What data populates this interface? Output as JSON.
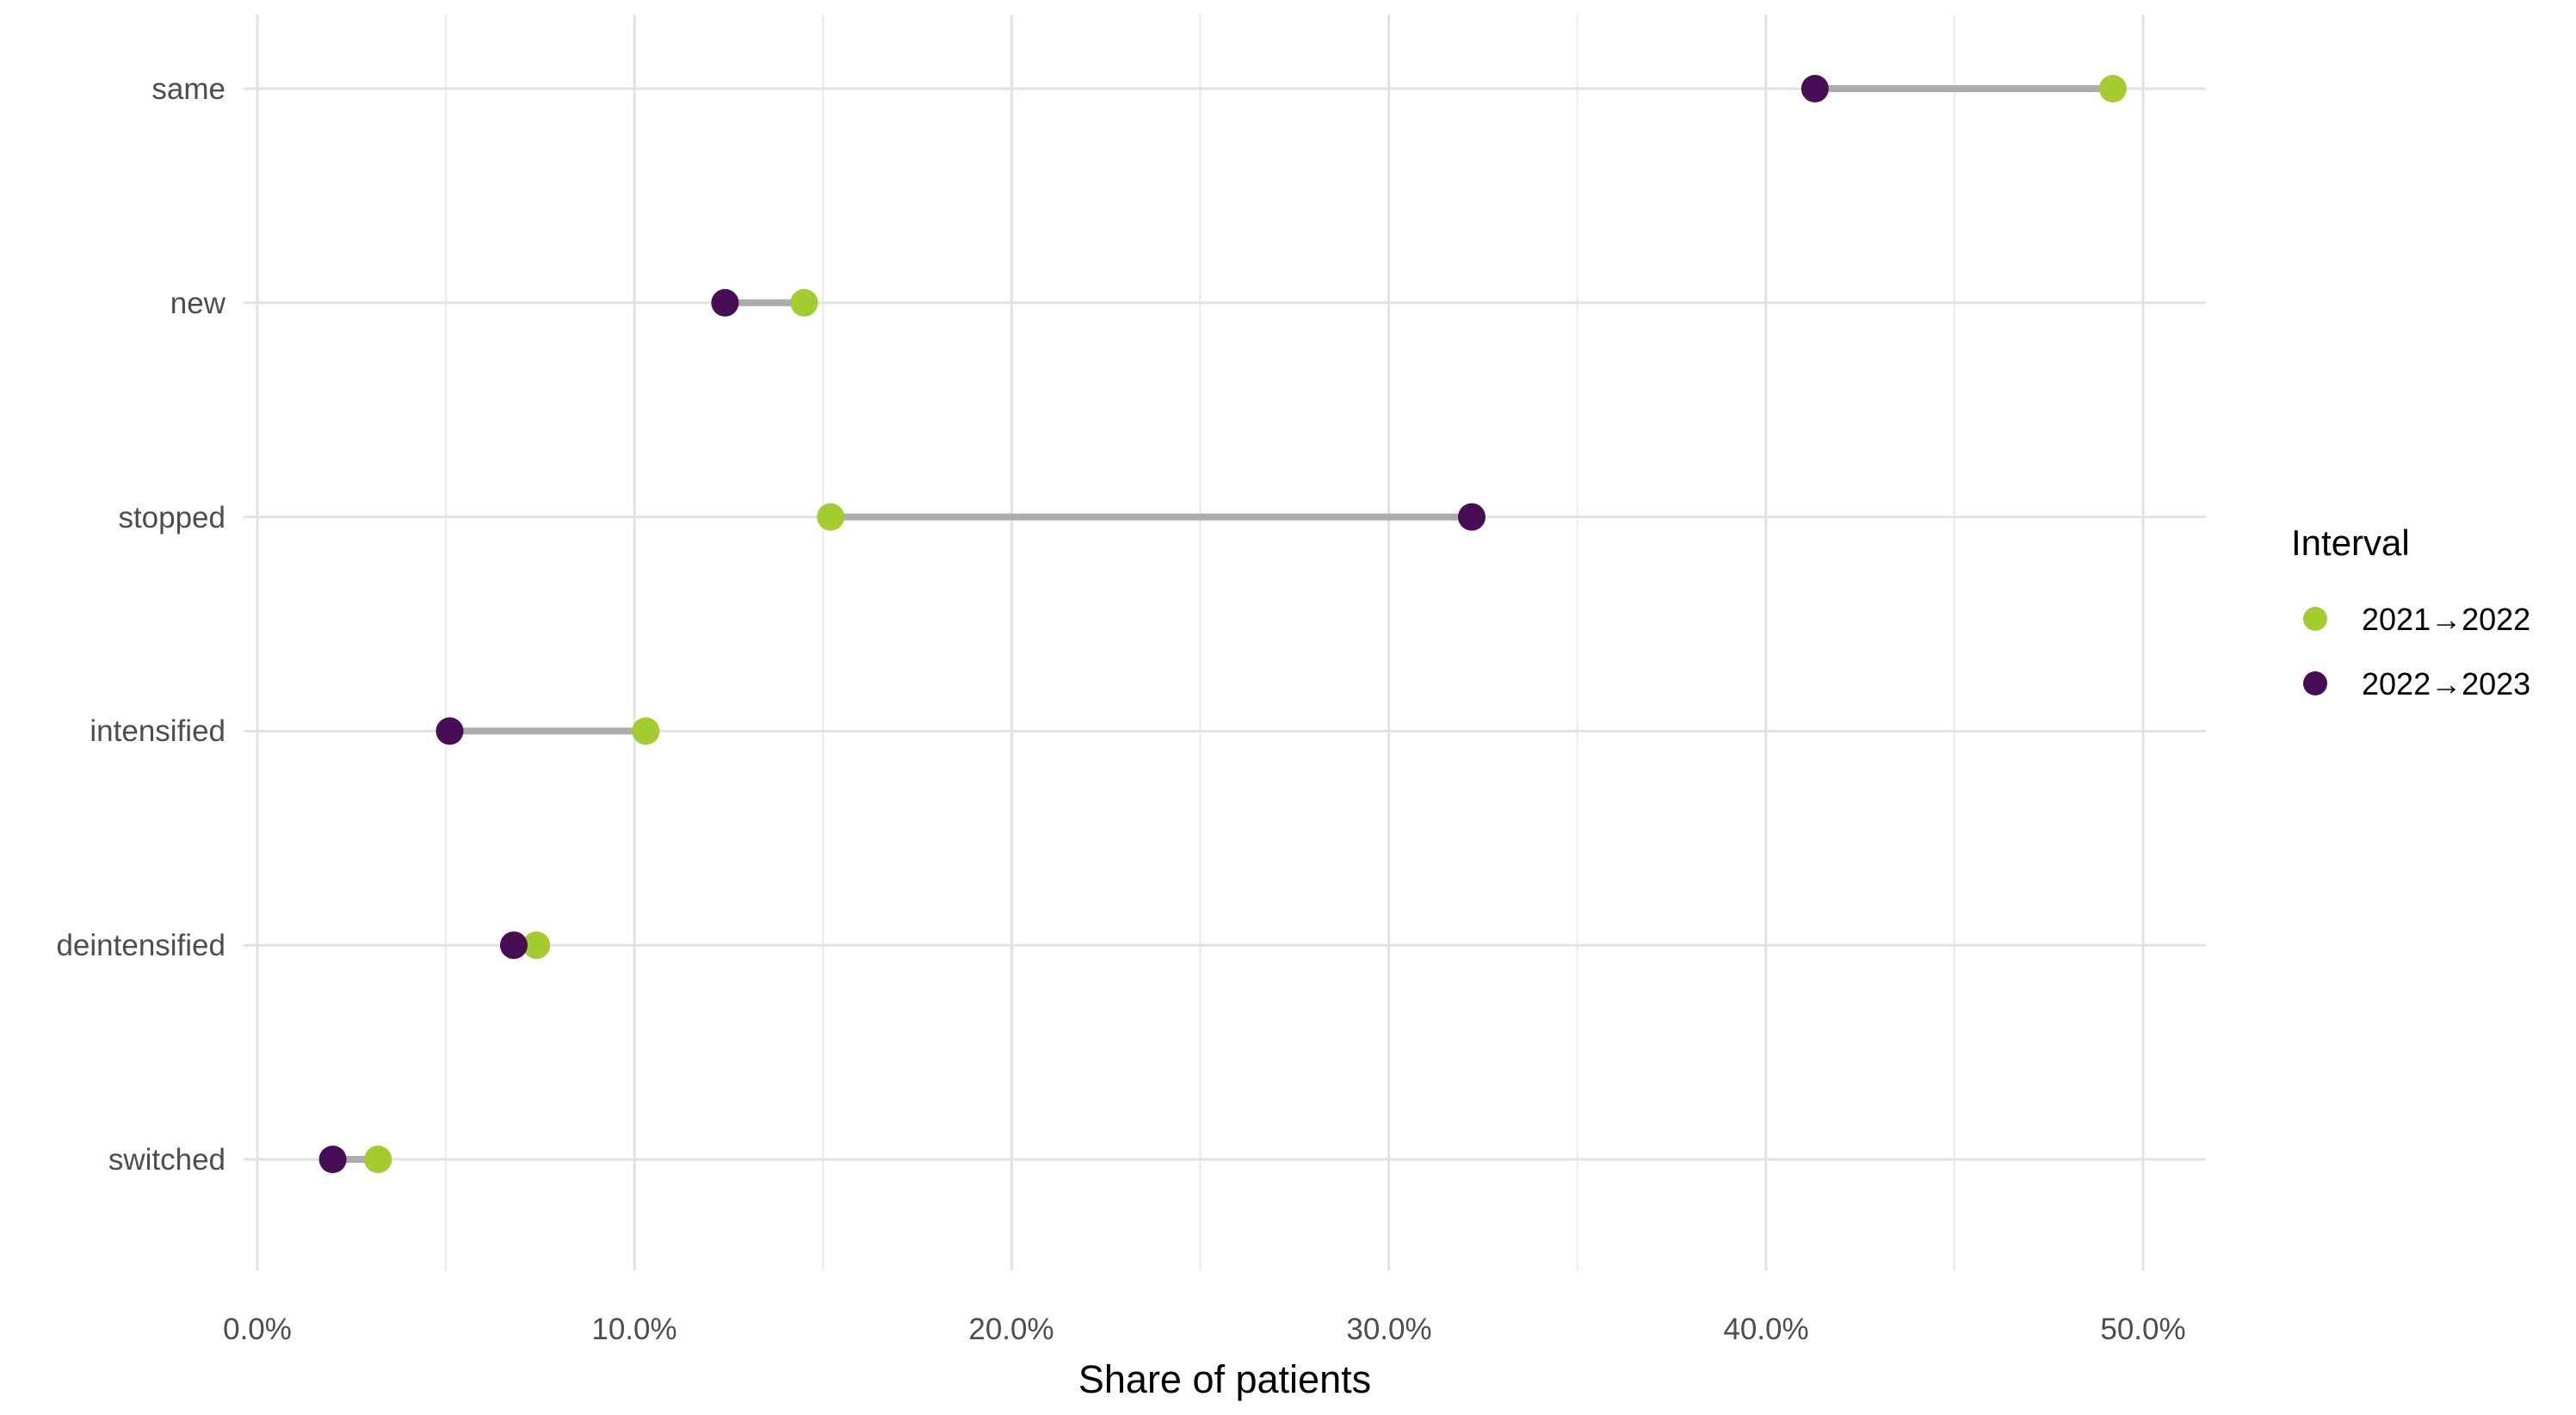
{
  "chart_data": {
    "type": "dumbbell",
    "orientation": "horizontal",
    "categories": [
      "same",
      "new",
      "stopped",
      "intensified",
      "deintensified",
      "switched"
    ],
    "series": [
      {
        "name": "2021→2022",
        "color": "#a3cd2e",
        "values": [
          49.2,
          14.5,
          15.2,
          10.3,
          7.4,
          3.2
        ]
      },
      {
        "name": "2022→2023",
        "color": "#470e55",
        "values": [
          41.3,
          12.4,
          32.2,
          5.1,
          6.8,
          2.0
        ]
      }
    ],
    "values_unit": "%",
    "xlabel": "Share of patients",
    "ylabel": "",
    "title": "",
    "xlim": [
      -0.5,
      51.7
    ],
    "x_major_ticks": [
      0,
      10,
      20,
      30,
      40,
      50
    ],
    "x_minor_ticks": [
      5,
      15,
      25,
      35,
      45
    ],
    "x_tick_labels": [
      "0.0%",
      "10.0%",
      "20.0%",
      "30.0%",
      "40.0%",
      "50.0%"
    ],
    "grid": "on",
    "legend": {
      "title": "Interval",
      "position": "right"
    },
    "colors": {
      "background": "#ffffff",
      "major_gridline": "#e2e2e2",
      "minor_gridline": "#ededed",
      "connector": "#acacac",
      "tick_text": "#4d4d4d",
      "axis_title_text": "#000000"
    }
  }
}
